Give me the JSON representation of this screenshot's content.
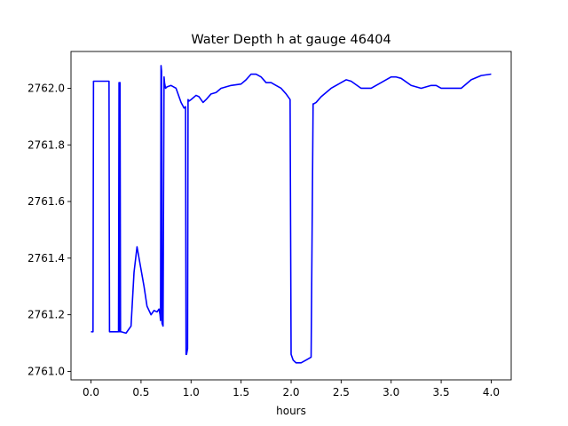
{
  "chart_data": {
    "type": "line",
    "title": "Water Depth h at gauge 46404",
    "xlabel": "hours",
    "ylabel": "",
    "xlim": [
      -0.2,
      4.2
    ],
    "ylim": [
      2760.97,
      2762.13
    ],
    "xticks": [
      0.0,
      0.5,
      1.0,
      1.5,
      2.0,
      2.5,
      3.0,
      3.5,
      4.0
    ],
    "xtick_labels": [
      "0.0",
      "0.5",
      "1.0",
      "1.5",
      "2.0",
      "2.5",
      "3.0",
      "3.5",
      "4.0"
    ],
    "yticks": [
      2761.0,
      2761.2,
      2761.4,
      2761.6,
      2761.8,
      2762.0
    ],
    "ytick_labels": [
      "2761.0",
      "2761.2",
      "2761.4",
      "2761.6",
      "2761.8",
      "2762.0"
    ],
    "grid": false,
    "series": [
      {
        "color": "#0000ff",
        "x": [
          0.0,
          0.02,
          0.025,
          0.18,
          0.185,
          0.275,
          0.28,
          0.285,
          0.29,
          0.295,
          0.3,
          0.35,
          0.4,
          0.43,
          0.46,
          0.48,
          0.5,
          0.53,
          0.56,
          0.6,
          0.63,
          0.66,
          0.68,
          0.69,
          0.695,
          0.7,
          0.705,
          0.71,
          0.72,
          0.73,
          0.735,
          0.745,
          0.76,
          0.8,
          0.85,
          0.9,
          0.93,
          0.945,
          0.95,
          0.955,
          0.96,
          0.965,
          0.97,
          0.98,
          1.0,
          1.05,
          1.08,
          1.12,
          1.15,
          1.2,
          1.25,
          1.3,
          1.4,
          1.5,
          1.55,
          1.6,
          1.65,
          1.7,
          1.75,
          1.8,
          1.85,
          1.9,
          1.95,
          1.99,
          2.0,
          2.02,
          2.05,
          2.1,
          2.15,
          2.2,
          2.22,
          2.225,
          2.25,
          2.3,
          2.4,
          2.5,
          2.55,
          2.6,
          2.7,
          2.8,
          2.9,
          3.0,
          3.05,
          3.1,
          3.2,
          3.3,
          3.4,
          3.45,
          3.5,
          3.6,
          3.7,
          3.8,
          3.9,
          4.0
        ],
        "y": [
          2761.14,
          2761.14,
          2762.025,
          2762.025,
          2761.14,
          2761.14,
          2762.02,
          2761.14,
          2762.02,
          2761.14,
          2761.14,
          2761.135,
          2761.16,
          2761.35,
          2761.44,
          2761.4,
          2761.36,
          2761.3,
          2761.23,
          2761.2,
          2761.215,
          2761.21,
          2761.22,
          2761.2,
          2761.18,
          2762.08,
          2762.06,
          2761.17,
          2761.16,
          2762.04,
          2762.02,
          2762.0,
          2762.005,
          2762.01,
          2762.0,
          2761.95,
          2761.93,
          2761.935,
          2761.06,
          2761.06,
          2761.07,
          2761.08,
          2761.96,
          2761.955,
          2761.96,
          2761.975,
          2761.97,
          2761.95,
          2761.96,
          2761.98,
          2761.985,
          2762.0,
          2762.01,
          2762.015,
          2762.03,
          2762.05,
          2762.05,
          2762.04,
          2762.02,
          2762.02,
          2762.01,
          2762.0,
          2761.98,
          2761.96,
          2761.06,
          2761.04,
          2761.03,
          2761.03,
          2761.04,
          2761.05,
          2761.945,
          2761.945,
          2761.95,
          2761.97,
          2762.0,
          2762.02,
          2762.03,
          2762.025,
          2762.0,
          2762.0,
          2762.02,
          2762.04,
          2762.04,
          2762.035,
          2762.01,
          2762.0,
          2762.01,
          2762.01,
          2762.0,
          2762.0,
          2762.0,
          2762.03,
          2762.045,
          2762.05
        ]
      }
    ]
  }
}
